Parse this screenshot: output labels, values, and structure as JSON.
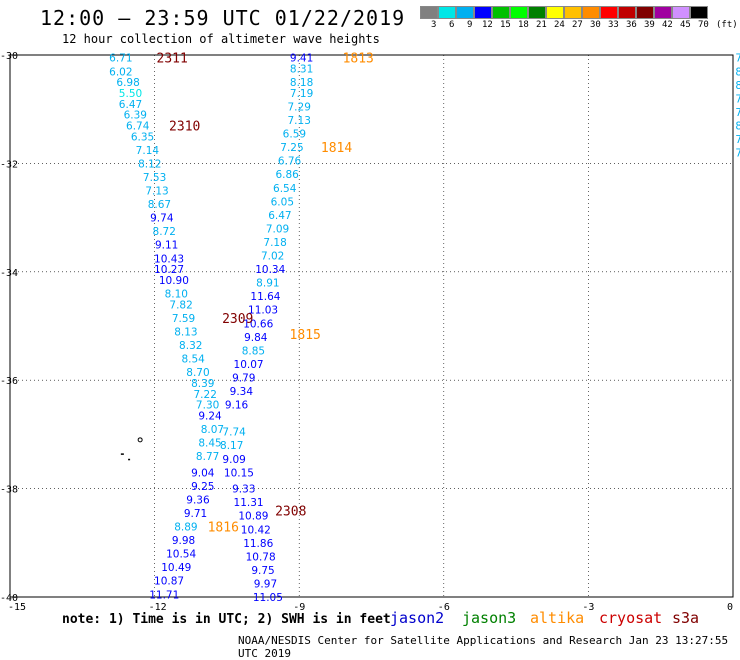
{
  "title": "12:00 – 23:59 UTC 01/22/2019",
  "subtitle": "12 hour collection of altimeter wave heights",
  "note": "note: 1) Time is in UTC; 2) SWH is in feet",
  "footer": "NOAA/NESDIS Center for Satellite Applications and Research   Jan 23 13:27:55 UTC 2019",
  "legend": {
    "labels": [
      "3",
      "6",
      "9",
      "12",
      "15",
      "18",
      "21",
      "24",
      "27",
      "30",
      "33",
      "36",
      "39",
      "42",
      "45",
      "70",
      "(ft)"
    ],
    "colors": [
      "#808080",
      "#00e6e6",
      "#00b0f0",
      "#0000ff",
      "#00c000",
      "#00ff00",
      "#008000",
      "#ffff00",
      "#ffc000",
      "#ff8c00",
      "#ff0000",
      "#c00000",
      "#800000",
      "#a000a0",
      "#d090ff",
      "#000000"
    ]
  },
  "satellites": [
    {
      "name": "jason2",
      "color": "#0000cc"
    },
    {
      "name": "jason3",
      "color": "#008000"
    },
    {
      "name": "altika",
      "color": "#ff8c00"
    },
    {
      "name": "cryosat",
      "color": "#cc0000"
    },
    {
      "name": "s3a",
      "color": "#800000"
    }
  ],
  "axes": {
    "x_ticks": [
      -15,
      -12,
      -9,
      -6,
      -3,
      0
    ],
    "y_ticks": [
      -30,
      -32,
      -34,
      -36,
      -38,
      -40
    ]
  },
  "track_times": [
    {
      "label": "2311",
      "color": "#800000",
      "lon": -11.96,
      "lat": -30.05
    },
    {
      "label": "2310",
      "color": "#800000",
      "lon": -11.7,
      "lat": -31.3
    },
    {
      "label": "1813",
      "color": "#ff8c00",
      "lon": -8.1,
      "lat": -30.05
    },
    {
      "label": "1814",
      "color": "#ff8c00",
      "lon": -8.55,
      "lat": -31.7
    },
    {
      "label": "1815",
      "color": "#ff8c00",
      "lon": -9.2,
      "lat": -35.15
    },
    {
      "label": "2309",
      "color": "#800000",
      "lon": -10.6,
      "lat": -34.85
    },
    {
      "label": "2308",
      "color": "#800000",
      "lon": -9.5,
      "lat": -38.4
    },
    {
      "label": "1816",
      "color": "#ff8c00",
      "lon": -10.9,
      "lat": -38.7
    }
  ],
  "tracks": [
    {
      "name": "track-a",
      "points": [
        {
          "lon": -12.7,
          "lat": -30.05,
          "v": "6.71",
          "c": "#00b0f0"
        },
        {
          "lon": -12.7,
          "lat": -30.3,
          "v": "6.02",
          "c": "#00b0f0"
        },
        {
          "lon": -12.55,
          "lat": -30.5,
          "v": "6.98",
          "c": "#00b0f0"
        },
        {
          "lon": -12.5,
          "lat": -30.7,
          "v": "5.50",
          "c": "#00e6e6"
        },
        {
          "lon": -12.5,
          "lat": -30.9,
          "v": "6.47",
          "c": "#00b0f0"
        },
        {
          "lon": -12.4,
          "lat": -31.1,
          "v": "6.39",
          "c": "#00b0f0"
        },
        {
          "lon": -12.35,
          "lat": -31.3,
          "v": "6.74",
          "c": "#00b0f0"
        },
        {
          "lon": -12.25,
          "lat": -31.5,
          "v": "6.35",
          "c": "#00b0f0"
        },
        {
          "lon": -12.15,
          "lat": -31.75,
          "v": "7.14",
          "c": "#00b0f0"
        },
        {
          "lon": -12.1,
          "lat": -32.0,
          "v": "8.12",
          "c": "#00b0f0"
        },
        {
          "lon": -12.0,
          "lat": -32.25,
          "v": "7.53",
          "c": "#00b0f0"
        },
        {
          "lon": -11.95,
          "lat": -32.5,
          "v": "7.13",
          "c": "#00b0f0"
        },
        {
          "lon": -11.9,
          "lat": -32.75,
          "v": "8.67",
          "c": "#00b0f0"
        },
        {
          "lon": -11.85,
          "lat": -33.0,
          "v": "9.74",
          "c": "#0000ff"
        },
        {
          "lon": -11.8,
          "lat": -33.25,
          "v": "8.72",
          "c": "#00b0f0"
        },
        {
          "lon": -11.75,
          "lat": -33.5,
          "v": "9.11",
          "c": "#0000ff"
        },
        {
          "lon": -11.7,
          "lat": -33.75,
          "v": "10.43",
          "c": "#0000ff"
        },
        {
          "lon": -11.7,
          "lat": -33.95,
          "v": "10.27",
          "c": "#0000ff"
        },
        {
          "lon": -11.6,
          "lat": -34.15,
          "v": "10.90",
          "c": "#0000ff"
        },
        {
          "lon": -11.55,
          "lat": -34.4,
          "v": "8.10",
          "c": "#00b0f0"
        },
        {
          "lon": -11.45,
          "lat": -34.6,
          "v": "7.82",
          "c": "#00b0f0"
        },
        {
          "lon": -11.4,
          "lat": -34.85,
          "v": "7.59",
          "c": "#00b0f0"
        },
        {
          "lon": -11.35,
          "lat": -35.1,
          "v": "8.13",
          "c": "#00b0f0"
        },
        {
          "lon": -11.25,
          "lat": -35.35,
          "v": "8.32",
          "c": "#00b0f0"
        },
        {
          "lon": -11.2,
          "lat": -35.6,
          "v": "8.54",
          "c": "#00b0f0"
        },
        {
          "lon": -11.1,
          "lat": -35.85,
          "v": "8.70",
          "c": "#00b0f0"
        },
        {
          "lon": -11.0,
          "lat": -36.05,
          "v": "8.39",
          "c": "#00b0f0"
        },
        {
          "lon": -10.95,
          "lat": -36.25,
          "v": "7.22",
          "c": "#00b0f0"
        },
        {
          "lon": -10.9,
          "lat": -36.45,
          "v": "7.30",
          "c": "#00b0f0"
        },
        {
          "lon": -10.85,
          "lat": -36.65,
          "v": "9.24",
          "c": "#0000ff"
        },
        {
          "lon": -10.8,
          "lat": -36.9,
          "v": "8.07",
          "c": "#00b0f0"
        },
        {
          "lon": -10.85,
          "lat": -37.15,
          "v": "8.45",
          "c": "#00b0f0"
        },
        {
          "lon": -10.9,
          "lat": -37.4,
          "v": "8.77",
          "c": "#00b0f0"
        },
        {
          "lon": -11.0,
          "lat": -37.7,
          "v": "9.04",
          "c": "#0000ff"
        },
        {
          "lon": -11.0,
          "lat": -37.95,
          "v": "9.25",
          "c": "#0000ff"
        },
        {
          "lon": -11.1,
          "lat": -38.2,
          "v": "9.36",
          "c": "#0000ff"
        },
        {
          "lon": -11.15,
          "lat": -38.45,
          "v": "9.71",
          "c": "#0000ff"
        },
        {
          "lon": -11.35,
          "lat": -38.7,
          "v": "8.89",
          "c": "#00b0f0"
        },
        {
          "lon": -11.4,
          "lat": -38.95,
          "v": "9.98",
          "c": "#0000ff"
        },
        {
          "lon": -11.45,
          "lat": -39.2,
          "v": "10.54",
          "c": "#0000ff"
        },
        {
          "lon": -11.55,
          "lat": -39.45,
          "v": "10.49",
          "c": "#0000ff"
        },
        {
          "lon": -11.7,
          "lat": -39.7,
          "v": "10.87",
          "c": "#0000ff"
        },
        {
          "lon": -11.8,
          "lat": -39.95,
          "v": "11.71",
          "c": "#0000ff"
        }
      ]
    },
    {
      "name": "track-b",
      "points": [
        {
          "lon": -8.95,
          "lat": -30.05,
          "v": "9.41",
          "c": "#0000ff"
        },
        {
          "lon": -8.95,
          "lat": -30.25,
          "v": "8.31",
          "c": "#00b0f0"
        },
        {
          "lon": -8.95,
          "lat": -30.5,
          "v": "8.18",
          "c": "#00b0f0"
        },
        {
          "lon": -8.95,
          "lat": -30.7,
          "v": "7.19",
          "c": "#00b0f0"
        },
        {
          "lon": -9.0,
          "lat": -30.95,
          "v": "7.29",
          "c": "#00b0f0"
        },
        {
          "lon": -9.0,
          "lat": -31.2,
          "v": "7.13",
          "c": "#00b0f0"
        },
        {
          "lon": -9.1,
          "lat": -31.45,
          "v": "6.59",
          "c": "#00b0f0"
        },
        {
          "lon": -9.15,
          "lat": -31.7,
          "v": "7.25",
          "c": "#00b0f0"
        },
        {
          "lon": -9.2,
          "lat": -31.95,
          "v": "6.76",
          "c": "#00b0f0"
        },
        {
          "lon": -9.25,
          "lat": -32.2,
          "v": "6.86",
          "c": "#00b0f0"
        },
        {
          "lon": -9.3,
          "lat": -32.45,
          "v": "6.54",
          "c": "#00b0f0"
        },
        {
          "lon": -9.35,
          "lat": -32.7,
          "v": "6.05",
          "c": "#00b0f0"
        },
        {
          "lon": -9.4,
          "lat": -32.95,
          "v": "6.47",
          "c": "#00b0f0"
        },
        {
          "lon": -9.45,
          "lat": -33.2,
          "v": "7.09",
          "c": "#00b0f0"
        },
        {
          "lon": -9.5,
          "lat": -33.45,
          "v": "7.18",
          "c": "#00b0f0"
        },
        {
          "lon": -9.55,
          "lat": -33.7,
          "v": "7.02",
          "c": "#00b0f0"
        },
        {
          "lon": -9.6,
          "lat": -33.95,
          "v": "10.34",
          "c": "#0000ff"
        },
        {
          "lon": -9.65,
          "lat": -34.2,
          "v": "8.91",
          "c": "#00b0f0"
        },
        {
          "lon": -9.7,
          "lat": -34.45,
          "v": "11.64",
          "c": "#0000ff"
        },
        {
          "lon": -9.75,
          "lat": -34.7,
          "v": "11.03",
          "c": "#0000ff"
        },
        {
          "lon": -9.85,
          "lat": -34.95,
          "v": "10.66",
          "c": "#0000ff"
        },
        {
          "lon": -9.9,
          "lat": -35.2,
          "v": "9.84",
          "c": "#0000ff"
        },
        {
          "lon": -9.95,
          "lat": -35.45,
          "v": "8.85",
          "c": "#00b0f0"
        },
        {
          "lon": -10.05,
          "lat": -35.7,
          "v": "10.07",
          "c": "#0000ff"
        },
        {
          "lon": -10.15,
          "lat": -35.95,
          "v": "9.79",
          "c": "#0000ff"
        },
        {
          "lon": -10.2,
          "lat": -36.2,
          "v": "9.34",
          "c": "#0000ff"
        },
        {
          "lon": -10.3,
          "lat": -36.45,
          "v": "9.16",
          "c": "#0000ff"
        },
        {
          "lon": -10.35,
          "lat": -36.95,
          "v": "7.74",
          "c": "#00b0f0"
        },
        {
          "lon": -10.4,
          "lat": -37.2,
          "v": "8.17",
          "c": "#00b0f0"
        },
        {
          "lon": -10.35,
          "lat": -37.45,
          "v": "9.09",
          "c": "#0000ff"
        },
        {
          "lon": -10.25,
          "lat": -37.7,
          "v": "10.15",
          "c": "#0000ff"
        },
        {
          "lon": -10.15,
          "lat": -38.0,
          "v": "9.33",
          "c": "#0000ff"
        },
        {
          "lon": -10.05,
          "lat": -38.25,
          "v": "11.31",
          "c": "#0000ff"
        },
        {
          "lon": -9.95,
          "lat": -38.5,
          "v": "10.89",
          "c": "#0000ff"
        },
        {
          "lon": -9.9,
          "lat": -38.75,
          "v": "10.42",
          "c": "#0000ff"
        },
        {
          "lon": -9.85,
          "lat": -39.0,
          "v": "11.86",
          "c": "#0000ff"
        },
        {
          "lon": -9.8,
          "lat": -39.25,
          "v": "10.78",
          "c": "#0000ff"
        },
        {
          "lon": -9.75,
          "lat": -39.5,
          "v": "9.75",
          "c": "#0000ff"
        },
        {
          "lon": -9.7,
          "lat": -39.75,
          "v": "9.97",
          "c": "#0000ff"
        },
        {
          "lon": -9.65,
          "lat": -40.0,
          "v": "11.05",
          "c": "#0000ff"
        }
      ]
    },
    {
      "name": "track-edge",
      "points": [
        {
          "lon": 0.05,
          "lat": -30.05,
          "v": "7.",
          "c": "#00b0f0"
        },
        {
          "lon": 0.05,
          "lat": -30.3,
          "v": "8",
          "c": "#00b0f0"
        },
        {
          "lon": 0.05,
          "lat": -30.55,
          "v": "8",
          "c": "#00b0f0"
        },
        {
          "lon": 0.05,
          "lat": -30.8,
          "v": "7",
          "c": "#00b0f0"
        },
        {
          "lon": 0.05,
          "lat": -31.05,
          "v": "7",
          "c": "#00b0f0"
        },
        {
          "lon": 0.05,
          "lat": -31.3,
          "v": "8",
          "c": "#00b0f0"
        },
        {
          "lon": 0.05,
          "lat": -31.55,
          "v": "7",
          "c": "#00b0f0"
        },
        {
          "lon": 0.05,
          "lat": -31.8,
          "v": "7",
          "c": "#00b0f0"
        }
      ]
    }
  ]
}
